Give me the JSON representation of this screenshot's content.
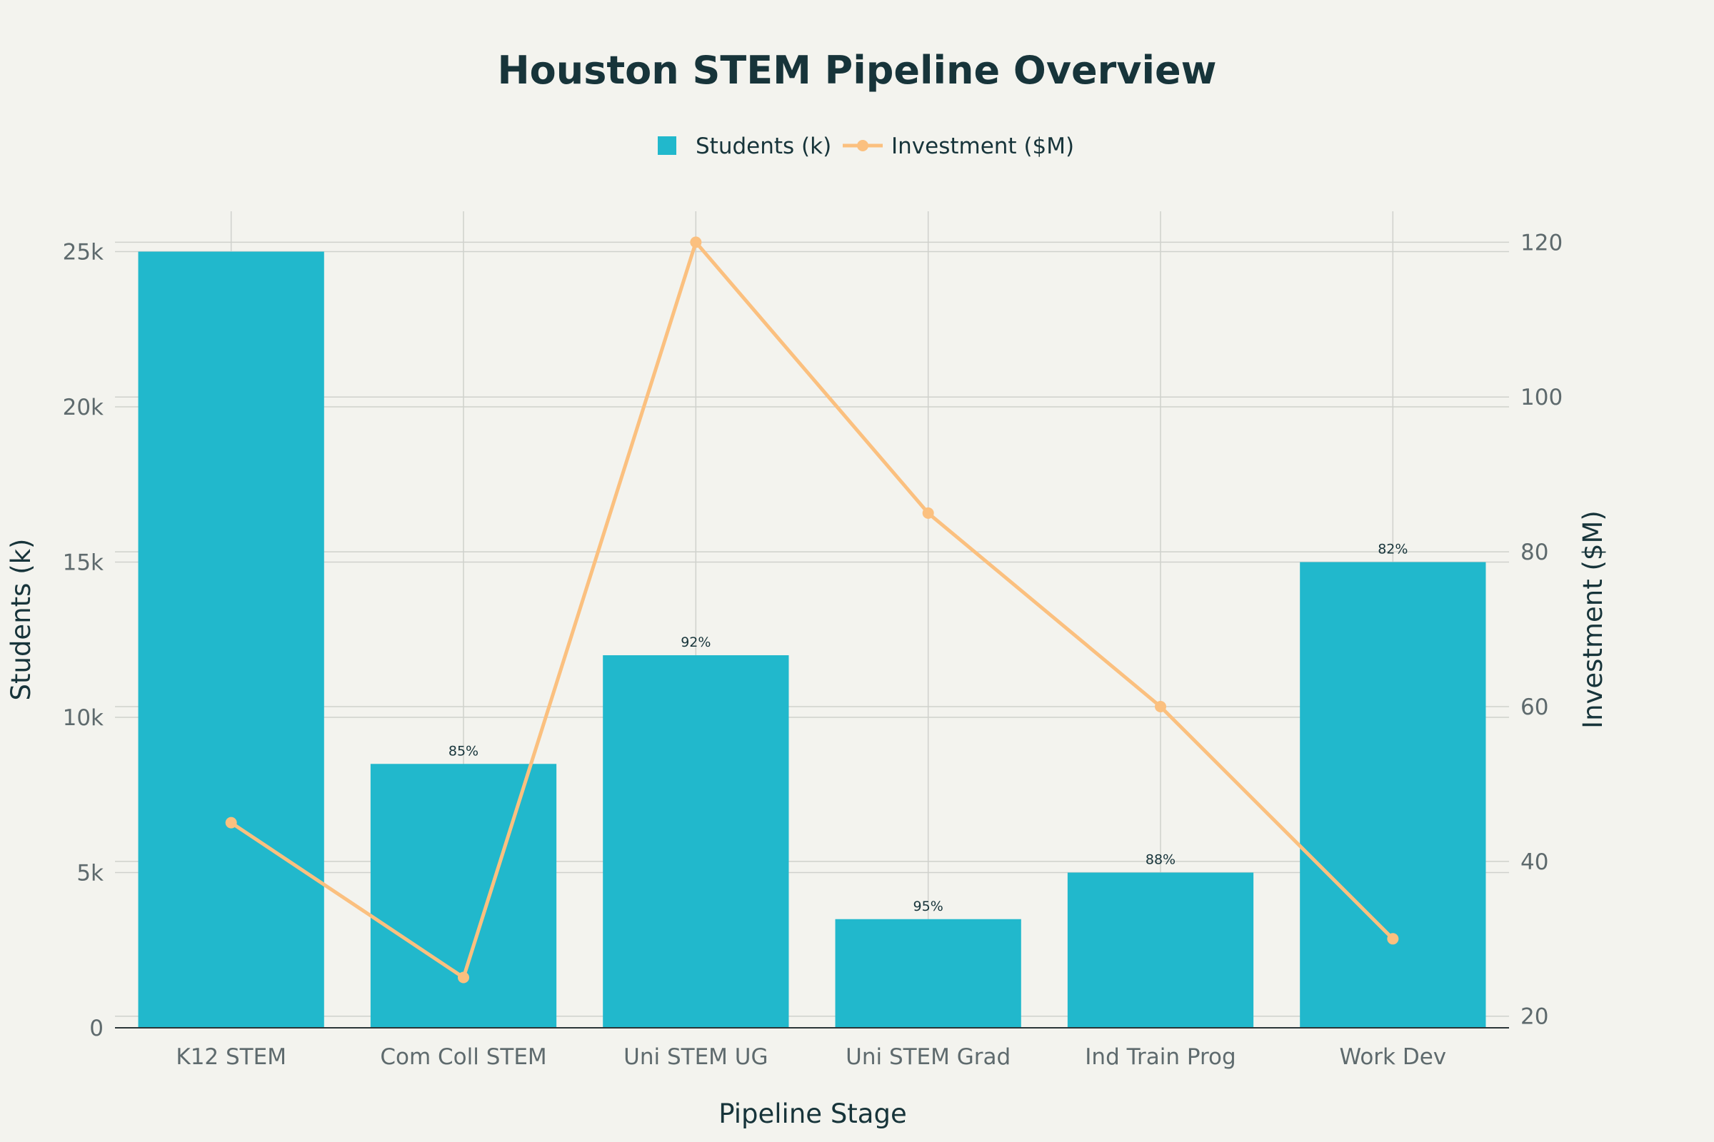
{
  "chart_data": {
    "type": "bar",
    "title": "Houston STEM Pipeline Overview",
    "xlabel": "Pipeline Stage",
    "ylabel": "Students (k)",
    "y2label": "Investment ($M)",
    "categories": [
      "K12 STEM",
      "Com Coll STEM",
      "Uni STEM UG",
      "Uni STEM Grad",
      "Ind Train Prog",
      "Work Dev"
    ],
    "series": [
      {
        "name": "Students (k)",
        "type": "bar",
        "axis": "left",
        "color": "#21b8cc",
        "values": [
          25000,
          8500,
          12000,
          3500,
          5000,
          15000
        ],
        "labels": [
          "",
          "85%",
          "92%",
          "95%",
          "88%",
          "82%"
        ]
      },
      {
        "name": "Investment ($M)",
        "type": "line",
        "axis": "right",
        "color": "#fbc07f",
        "values": [
          45,
          25,
          120,
          85,
          60,
          30
        ]
      }
    ],
    "ylim": [
      0,
      26300
    ],
    "y2lim": [
      18.5,
      124
    ],
    "yticks": [
      {
        "value": 0,
        "label": "0"
      },
      {
        "value": 5000,
        "label": "5k"
      },
      {
        "value": 10000,
        "label": "10k"
      },
      {
        "value": 15000,
        "label": "15k"
      },
      {
        "value": 20000,
        "label": "20k"
      },
      {
        "value": 25000,
        "label": "25k"
      }
    ],
    "y2ticks": [
      {
        "value": 20,
        "label": "20"
      },
      {
        "value": 40,
        "label": "40"
      },
      {
        "value": 60,
        "label": "60"
      },
      {
        "value": 80,
        "label": "80"
      },
      {
        "value": 100,
        "label": "100"
      },
      {
        "value": 120,
        "label": "120"
      }
    ],
    "grid": true,
    "legend_position": "top-center",
    "colors": {
      "background": "#f3f3ee",
      "grid": "#cfd1cc",
      "axis": "#2b3538",
      "text": "#17343a",
      "tick": "#5e6a6d"
    }
  }
}
